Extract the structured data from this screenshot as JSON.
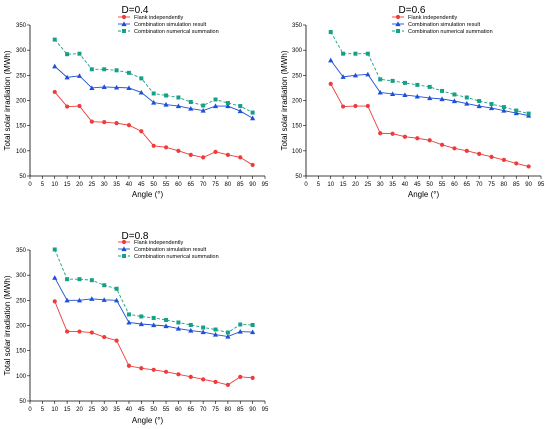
{
  "colors": {
    "red": "#ee3b3b",
    "blue": "#1f4fd8",
    "green": "#16a085",
    "axis": "#000000"
  },
  "chart_data": [
    {
      "type": "line",
      "title": "D=0.4",
      "xlabel": "Angle (°)",
      "ylabel": "Total solar irradiation (MWh)",
      "xlim": [
        0,
        95
      ],
      "ylim": [
        50,
        350
      ],
      "xticks": [
        0,
        5,
        10,
        15,
        20,
        25,
        30,
        35,
        40,
        45,
        50,
        55,
        60,
        65,
        70,
        75,
        80,
        85,
        90,
        95
      ],
      "yticks": [
        50,
        100,
        150,
        200,
        250,
        300,
        350
      ],
      "legend_position": "top-right",
      "x": [
        10,
        15,
        20,
        25,
        30,
        35,
        40,
        45,
        50,
        55,
        60,
        65,
        70,
        75,
        80,
        85,
        90
      ],
      "series": [
        {
          "name": "Flank independently",
          "color": "#ee3b3b",
          "marker": "circle",
          "dash": "none",
          "values": [
            217,
            188,
            189,
            158,
            157,
            155,
            151,
            139,
            110,
            107,
            100,
            92,
            87,
            98,
            92,
            87,
            72
          ]
        },
        {
          "name": "Combination simulation result",
          "color": "#1f4fd8",
          "marker": "triangle",
          "dash": "none",
          "values": [
            268,
            246,
            249,
            225,
            227,
            226,
            225,
            216,
            196,
            192,
            189,
            184,
            180,
            189,
            189,
            179,
            165
          ]
        },
        {
          "name": "Combination numerical summation",
          "color": "#16a085",
          "marker": "square",
          "dash": "dash",
          "values": [
            321,
            292,
            293,
            262,
            262,
            260,
            255,
            244,
            214,
            210,
            206,
            197,
            190,
            202,
            195,
            189,
            176
          ]
        }
      ]
    },
    {
      "type": "line",
      "title": "D=0.6",
      "xlabel": "Angle (°)",
      "ylabel": "Total solar irradiation (MWh)",
      "xlim": [
        0,
        95
      ],
      "ylim": [
        50,
        350
      ],
      "xticks": [
        0,
        5,
        10,
        15,
        20,
        25,
        30,
        35,
        40,
        45,
        50,
        55,
        60,
        65,
        70,
        75,
        80,
        85,
        90,
        95
      ],
      "yticks": [
        50,
        100,
        150,
        200,
        250,
        300,
        350
      ],
      "legend_position": "top-right",
      "x": [
        10,
        15,
        20,
        25,
        30,
        35,
        40,
        45,
        50,
        55,
        60,
        65,
        70,
        75,
        80,
        85,
        90
      ],
      "series": [
        {
          "name": "Flank independently",
          "color": "#ee3b3b",
          "marker": "circle",
          "dash": "none",
          "values": [
            233,
            188,
            189,
            189,
            135,
            134,
            128,
            125,
            121,
            112,
            105,
            100,
            94,
            88,
            82,
            75,
            69
          ]
        },
        {
          "name": "Combination simulation result",
          "color": "#1f4fd8",
          "marker": "triangle",
          "dash": "none",
          "values": [
            280,
            247,
            250,
            252,
            216,
            213,
            211,
            208,
            205,
            203,
            199,
            194,
            189,
            185,
            180,
            175,
            170
          ]
        },
        {
          "name": "Combination numerical summation",
          "color": "#16a085",
          "marker": "square",
          "dash": "dash",
          "values": [
            336,
            293,
            293,
            293,
            242,
            239,
            235,
            231,
            227,
            219,
            212,
            206,
            199,
            193,
            187,
            180,
            174
          ]
        }
      ]
    },
    {
      "type": "line",
      "title": "D=0.8",
      "xlabel": "Angle (°)",
      "ylabel": "Total solar irradiation (MWh)",
      "xlim": [
        0,
        95
      ],
      "ylim": [
        50,
        350
      ],
      "xticks": [
        0,
        5,
        10,
        15,
        20,
        25,
        30,
        35,
        40,
        45,
        50,
        55,
        60,
        65,
        70,
        75,
        80,
        85,
        90,
        95
      ],
      "yticks": [
        50,
        100,
        150,
        200,
        250,
        300,
        350
      ],
      "legend_position": "top-right",
      "x": [
        10,
        15,
        20,
        25,
        30,
        35,
        40,
        45,
        50,
        55,
        60,
        65,
        70,
        75,
        80,
        85,
        90
      ],
      "series": [
        {
          "name": "Flank independently",
          "color": "#ee3b3b",
          "marker": "circle",
          "dash": "none",
          "values": [
            248,
            188,
            188,
            186,
            177,
            170,
            120,
            115,
            112,
            108,
            103,
            98,
            93,
            88,
            82,
            98,
            96
          ]
        },
        {
          "name": "Combination  simulation result",
          "color": "#1f4fd8",
          "marker": "triangle",
          "dash": "none",
          "values": [
            295,
            250,
            250,
            253,
            251,
            250,
            206,
            203,
            201,
            199,
            194,
            190,
            187,
            182,
            178,
            188,
            187
          ]
        },
        {
          "name": "Combination numerical summation",
          "color": "#16a085",
          "marker": "square",
          "dash": "dash",
          "values": [
            351,
            292,
            292,
            290,
            280,
            273,
            222,
            218,
            215,
            211,
            206,
            201,
            196,
            192,
            186,
            202,
            201
          ]
        }
      ]
    }
  ]
}
